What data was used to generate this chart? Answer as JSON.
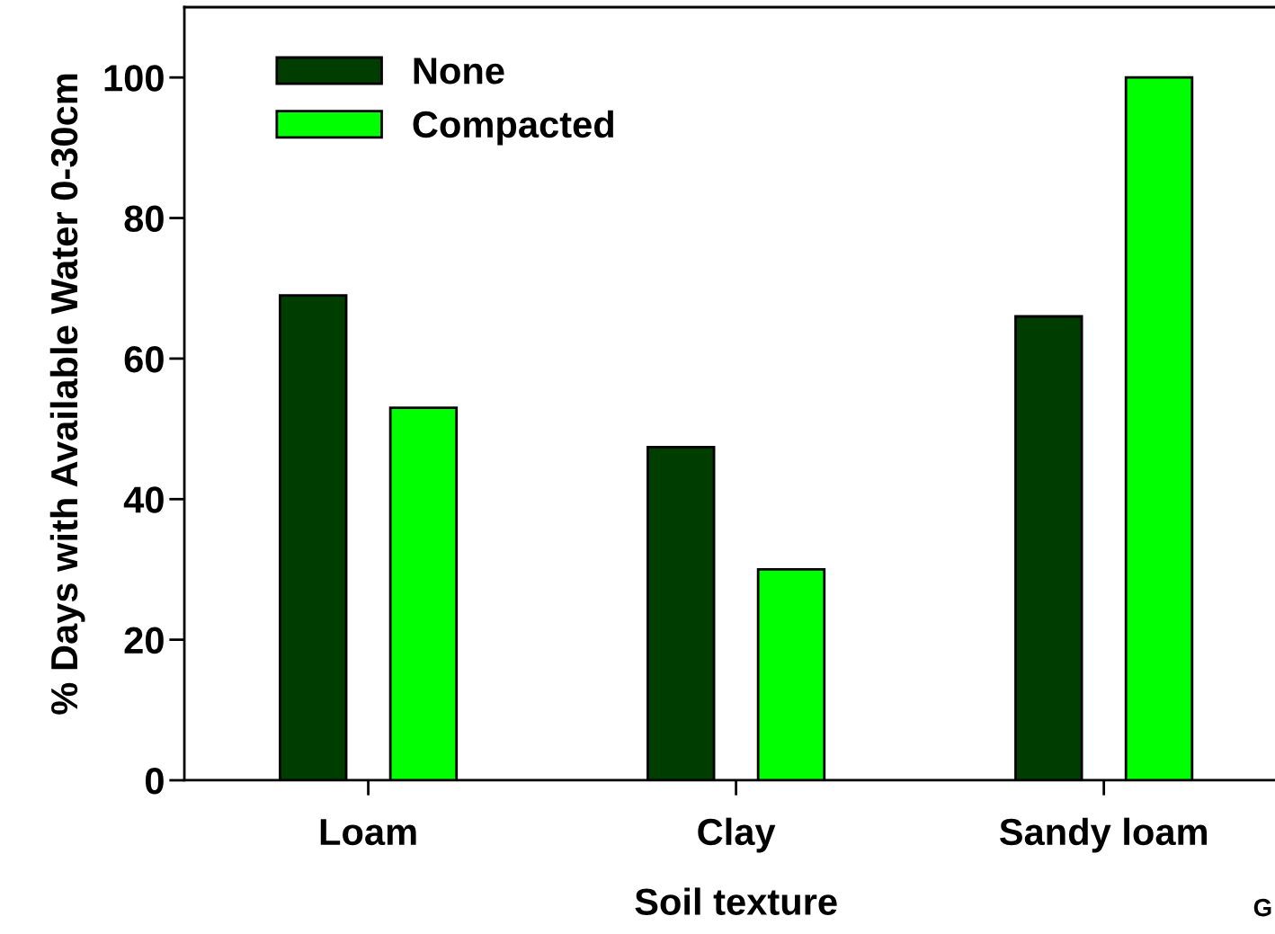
{
  "chart_data": {
    "type": "bar",
    "xlabel": "Soil texture",
    "ylabel": "% Days with Available Water 0-30cm",
    "categories": [
      "Loam",
      "Clay",
      "Sandy loam"
    ],
    "series": [
      {
        "name": "None",
        "color": "#003d00",
        "values": [
          69,
          47.4,
          66
        ]
      },
      {
        "name": "Compacted",
        "color": "#00ff00",
        "values": [
          53,
          30,
          100
        ]
      }
    ],
    "ylim": [
      0,
      110
    ],
    "yticks": [
      0,
      20,
      40,
      60,
      80,
      100
    ],
    "grid": false,
    "legend": "top left",
    "annotations": [
      "G"
    ]
  }
}
